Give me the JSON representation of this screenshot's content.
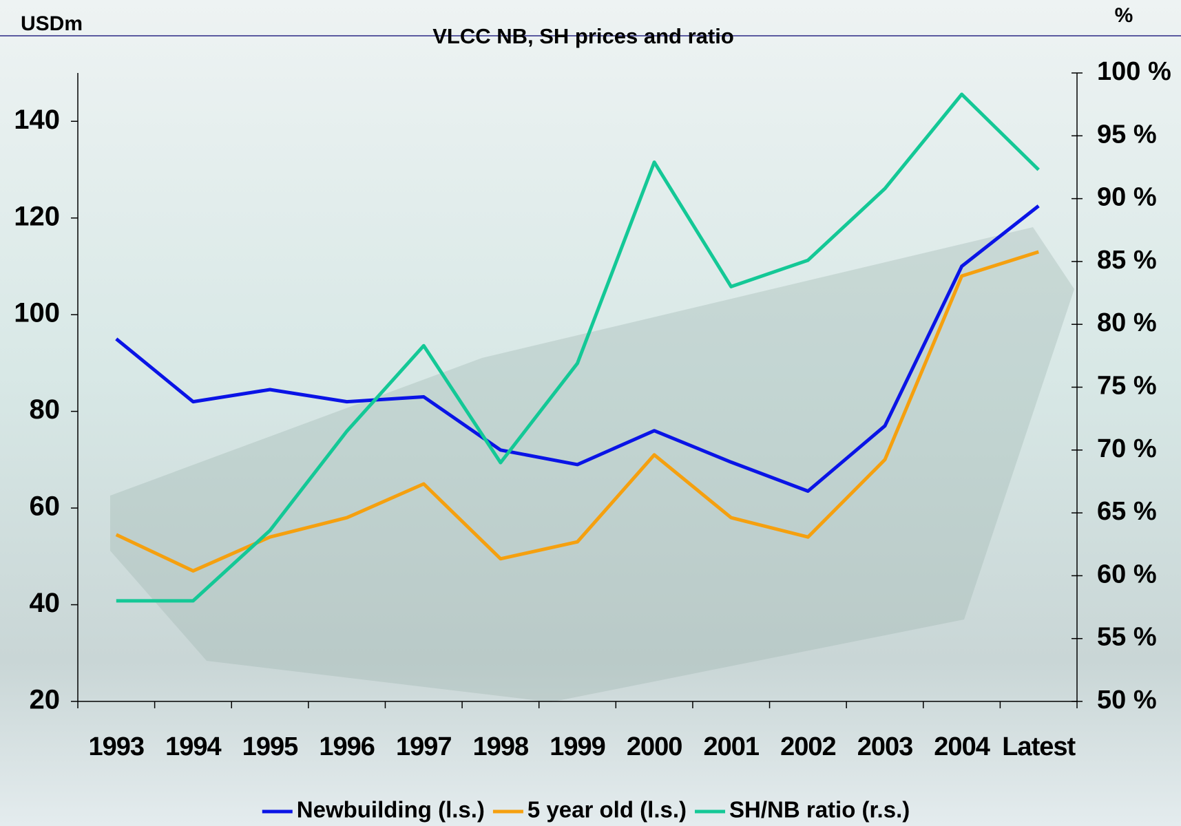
{
  "chart_data": {
    "type": "line",
    "title": "VLCC NB, SH prices and ratio",
    "ylabel": "USDm",
    "y2label": "%",
    "categories": [
      "1993",
      "1994",
      "1995",
      "1996",
      "1997",
      "1998",
      "1999",
      "2000",
      "2001",
      "2002",
      "2003",
      "2004",
      "Latest"
    ],
    "series": [
      {
        "name": "Newbuilding (l.s.)",
        "color": "#0a14e6",
        "values": [
          95,
          82,
          84.5,
          82,
          83,
          72,
          69,
          76,
          69.5,
          63.5,
          77,
          110,
          122.5
        ]
      },
      {
        "name": "5 year old (l.s.)",
        "color": "#f5a00f",
        "values": [
          54.5,
          47,
          54,
          58,
          65,
          49.5,
          53,
          71,
          58,
          54,
          70,
          108,
          113
        ]
      },
      {
        "name": "SH/NB ratio (r.s.)",
        "color": "#14c896",
        "axis": "y2",
        "values": [
          58,
          58,
          63.6,
          71.5,
          78.3,
          69,
          76.9,
          92.9,
          83,
          85.1,
          90.8,
          98.3,
          92.3
        ]
      }
    ],
    "ylim": [
      20,
      150
    ],
    "yticks": [
      20,
      40,
      60,
      80,
      100,
      120,
      140
    ],
    "y2lim": [
      50,
      100
    ],
    "y2ticks": [
      {
        "value": 50,
        "label": "50 %"
      },
      {
        "value": 55,
        "label": "55 %"
      },
      {
        "value": 60,
        "label": "60 %"
      },
      {
        "value": 65,
        "label": "65 %"
      },
      {
        "value": 70,
        "label": "70 %"
      },
      {
        "value": 75,
        "label": "75 %"
      },
      {
        "value": 80,
        "label": "80 %"
      },
      {
        "value": 85,
        "label": "85 %"
      },
      {
        "value": 90,
        "label": "90 %"
      },
      {
        "value": 95,
        "label": "95 %"
      },
      {
        "value": 100,
        "label": "100 %"
      }
    ],
    "legend": "bottom"
  }
}
